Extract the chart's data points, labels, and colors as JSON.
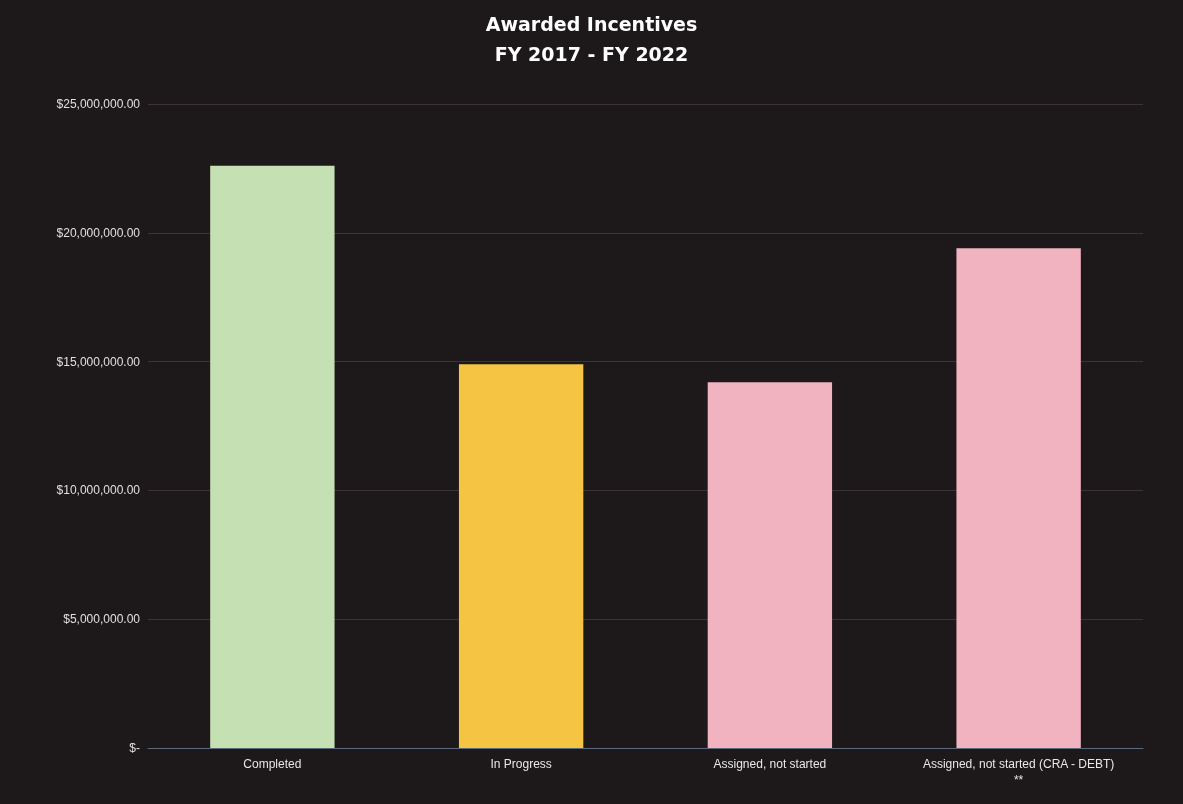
{
  "chart_data": {
    "type": "bar",
    "title": "Awarded Incentives\nFY 2017 - FY 2022",
    "categories": [
      "Completed",
      "In Progress",
      "Assigned, not started",
      "Assigned, not started (CRA - DEBT)\n**"
    ],
    "values": [
      22600000,
      14900000,
      14200000,
      19400000
    ],
    "colors": [
      "#c5e0b3",
      "#f6c443",
      "#f2b3c0",
      "#f2b3c0"
    ],
    "ylim": [
      0,
      25000000
    ],
    "yticks": [
      {
        "value": 0,
        "label": "$-"
      },
      {
        "value": 5000000,
        "label": "$5,000,000.00"
      },
      {
        "value": 10000000,
        "label": "$10,000,000.00"
      },
      {
        "value": 15000000,
        "label": "$15,000,000.00"
      },
      {
        "value": 20000000,
        "label": "$20,000,000.00"
      },
      {
        "value": 25000000,
        "label": "$25,000,000.00"
      }
    ],
    "grid": true
  }
}
